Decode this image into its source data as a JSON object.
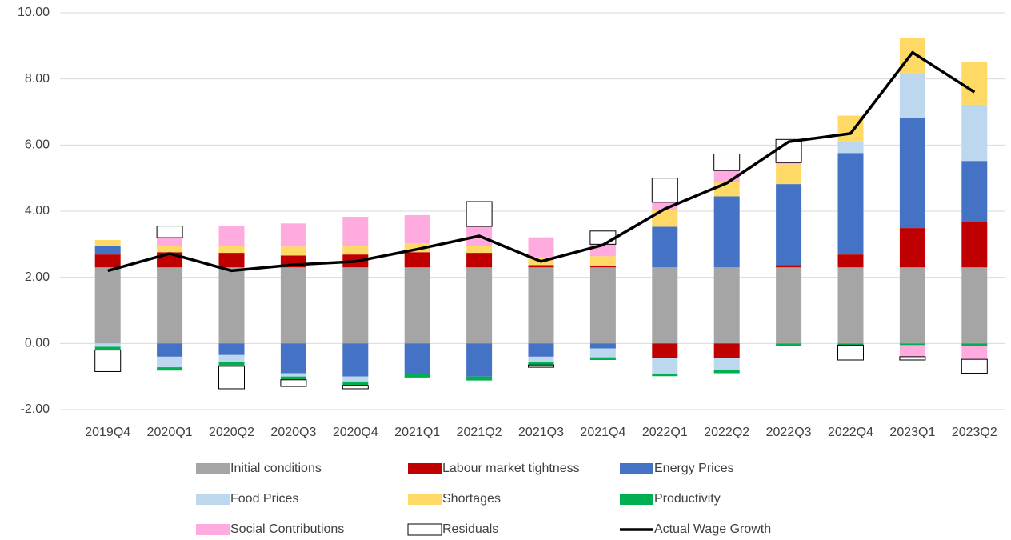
{
  "chart_data": {
    "type": "bar",
    "categories": [
      "2019Q4",
      "2020Q1",
      "2020Q2",
      "2020Q3",
      "2020Q4",
      "2021Q1",
      "2021Q2",
      "2021Q3",
      "2021Q4",
      "2022Q1",
      "2022Q2",
      "2022Q3",
      "2022Q4",
      "2023Q1",
      "2023Q2"
    ],
    "stacked": true,
    "ylim": [
      -2,
      10
    ],
    "yticks": [
      {
        "value": -2,
        "label": "-2.00"
      },
      {
        "value": 0,
        "label": "0.00"
      },
      {
        "value": 2,
        "label": "2.00"
      },
      {
        "value": 4,
        "label": "4.00"
      },
      {
        "value": 6,
        "label": "6.00"
      },
      {
        "value": 8,
        "label": "8.00"
      },
      {
        "value": 10,
        "label": "10.00"
      }
    ],
    "grid": true,
    "legend": "bottom",
    "series": [
      {
        "name": "Initial conditions",
        "color": "#a5a5a5",
        "values": [
          2.3,
          2.3,
          2.3,
          2.3,
          2.3,
          2.3,
          2.3,
          2.3,
          2.3,
          2.3,
          2.3,
          2.3,
          2.3,
          2.3,
          2.3
        ]
      },
      {
        "name": "Labour market tightness",
        "color": "#c00000",
        "values": [
          0.39,
          0.46,
          0.44,
          0.36,
          0.39,
          0.46,
          0.44,
          0.07,
          0.05,
          -0.45,
          -0.45,
          0.07,
          0.39,
          1.19,
          1.38
        ]
      },
      {
        "name": "Energy Prices",
        "color": "#4472c4",
        "values": [
          0.27,
          -0.4,
          -0.35,
          -0.9,
          -1.0,
          -0.93,
          -1.0,
          -0.4,
          -0.15,
          1.23,
          2.15,
          2.45,
          3.07,
          3.34,
          1.84
        ]
      },
      {
        "name": "Food Prices",
        "color": "#bdd7ee",
        "values": [
          -0.1,
          -0.32,
          -0.22,
          -0.1,
          -0.15,
          0,
          0,
          -0.15,
          -0.27,
          -0.46,
          -0.35,
          0,
          0.36,
          1.33,
          1.7
        ]
      },
      {
        "name": "Shortages",
        "color": "#ffd966",
        "values": [
          0.17,
          0.2,
          0.22,
          0.27,
          0.27,
          0.27,
          0.22,
          0.24,
          0.29,
          0.5,
          0.44,
          0.6,
          0.77,
          1.09,
          1.28
        ]
      },
      {
        "name": "Productivity",
        "color": "#00b050",
        "values": [
          -0.1,
          -0.1,
          -0.12,
          -0.1,
          -0.12,
          -0.1,
          -0.12,
          -0.1,
          -0.08,
          -0.08,
          -0.1,
          -0.08,
          -0.05,
          -0.05,
          -0.08
        ]
      },
      {
        "name": "Social Contributions",
        "color": "#ffabe0",
        "values": [
          0,
          0.24,
          0.58,
          0.7,
          0.87,
          0.85,
          0.58,
          0.6,
          0.36,
          0.24,
          0.34,
          0.05,
          0,
          -0.35,
          -0.4
        ]
      },
      {
        "name": "Residuals",
        "color": "#ffffff",
        "stroke": "#000000",
        "values": [
          -0.65,
          0.35,
          -0.68,
          -0.2,
          -0.1,
          0,
          0.75,
          -0.07,
          0.4,
          0.73,
          0.5,
          0.7,
          -0.45,
          -0.1,
          -0.42
        ]
      }
    ],
    "line": {
      "name": "Actual Wage Growth",
      "color": "#000000",
      "values": [
        2.2,
        2.72,
        2.2,
        2.38,
        2.48,
        2.85,
        3.25,
        2.48,
        2.98,
        4.07,
        4.85,
        6.1,
        6.35,
        8.8,
        7.6
      ]
    }
  }
}
